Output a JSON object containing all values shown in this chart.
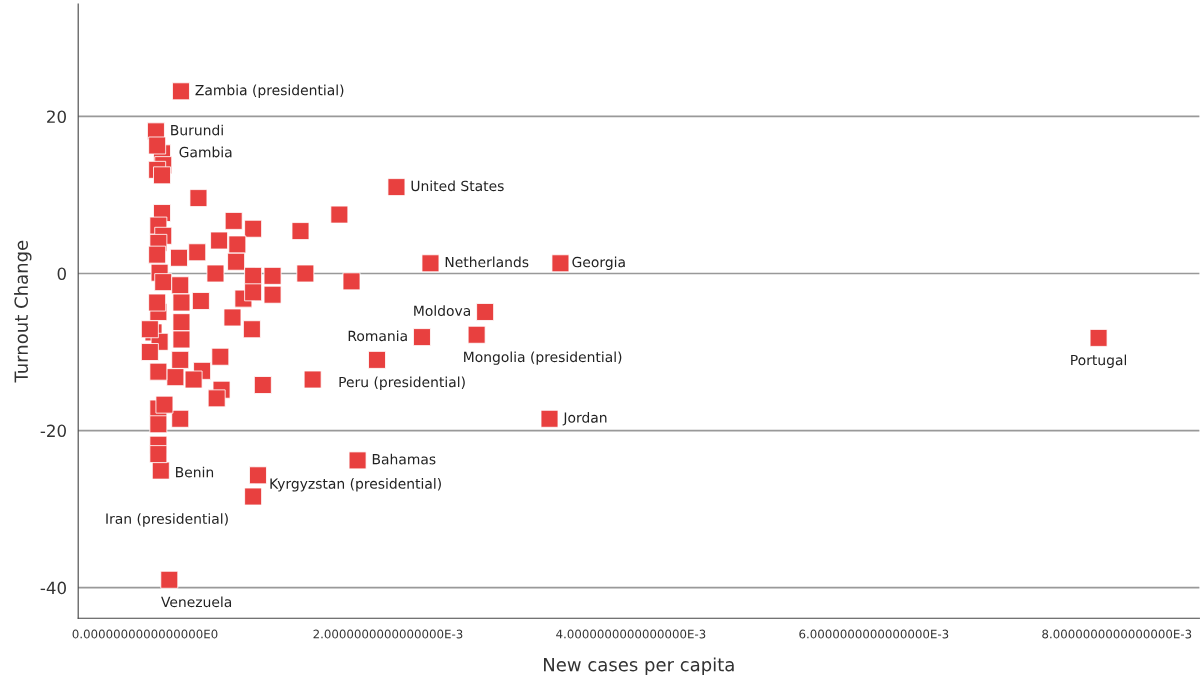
{
  "chart_data": {
    "type": "scatter",
    "xlabel": "New cases per capita",
    "ylabel": "Turnout Change",
    "xlim": [
      -0.00055,
      0.00868
    ],
    "ylim": [
      -43.9,
      34.3
    ],
    "xticks": [
      {
        "value": 0,
        "label": "0.0000000000000000E0"
      },
      {
        "value": 0.002,
        "label": "2.0000000000000000E-3"
      },
      {
        "value": 0.004,
        "label": "4.0000000000000000E-3"
      },
      {
        "value": 0.006,
        "label": "6.0000000000000000E-3"
      },
      {
        "value": 0.008,
        "label": "8.0000000000000000E-3"
      }
    ],
    "yticks": [
      -40,
      -20,
      0,
      20
    ],
    "grid": "y",
    "marker": "square",
    "series": [
      {
        "color": "#e8403f",
        "x": [
          0.000296,
          9e-05,
          0.00014,
          0.00207,
          0.00235,
          0.00342,
          0.0028,
          0.00228,
          0.00273,
          0.00191,
          0.00785,
          0.00333,
          0.00175,
          0.00093,
          0.00089,
          0.00013,
          0.0002,
          0.0001,
          0.00015,
          0.0001,
          0.00014,
          0.00044,
          0.00014,
          0.00011,
          0.00015,
          0.00011,
          0.0001,
          0.00028,
          0.00043,
          0.00073,
          0.00089,
          0.00128,
          0.00061,
          0.00076,
          0.00075,
          0.00058,
          0.00089,
          0.00105,
          0.00132,
          0.00012,
          0.00015,
          0.00029,
          0.0003,
          0.00046,
          0.00081,
          0.00089,
          0.00105,
          0.00072,
          0.00088,
          0.0003,
          0.0003,
          0.00011,
          0.0001,
          7e-05,
          0.00012,
          0.0016,
          0.0017,
          0.00097,
          0.00138,
          0.00062,
          0.00047,
          0.0004,
          0.00063,
          0.00059,
          0.00029,
          0.00025,
          0.00029,
          0.00011,
          0.00016,
          0.00011,
          0.00011,
          0.00011,
          4e-05,
          0.00011,
          4e-05
        ],
        "values": [
          23.2,
          18.1,
          15.3,
          11.0,
          1.3,
          1.3,
          -4.9,
          -8.1,
          -7.8,
          -11.0,
          -8.2,
          -18.5,
          -23.8,
          -25.7,
          -28.4,
          -25.1,
          -39.0,
          16.3,
          13.8,
          13.2,
          12.5,
          9.6,
          7.7,
          6.1,
          4.8,
          3.9,
          2.4,
          2.0,
          2.7,
          6.7,
          5.7,
          5.4,
          4.2,
          3.7,
          1.5,
          0.0,
          -0.3,
          -0.3,
          0.0,
          0.1,
          -1.1,
          -1.5,
          -3.7,
          -3.5,
          -3.2,
          -2.4,
          -2.7,
          -5.6,
          -7.1,
          -6.2,
          -8.4,
          -4.9,
          -3.7,
          -7.5,
          -8.7,
          7.5,
          -1.0,
          -14.2,
          -13.5,
          -10.6,
          -12.4,
          -13.5,
          -14.8,
          -15.9,
          -11.0,
          -13.2,
          -18.5,
          -17.2,
          -16.7,
          -19.2,
          -21.8,
          -23.0,
          -10.0,
          -12.5,
          -7.1
        ]
      }
    ],
    "annotations": [
      {
        "text": "Zambia (presidential)",
        "x": 0.000296,
        "y": 23.2
      },
      {
        "text": "Burundi",
        "x": 9e-05,
        "y": 18.1
      },
      {
        "text": "Gambia",
        "x": 0.00014,
        "y": 15.3
      },
      {
        "text": "United States",
        "x": 0.00207,
        "y": 11.0
      },
      {
        "text": "Netherlands",
        "x": 0.00235,
        "y": 1.3
      },
      {
        "text": "Georgia",
        "x": 0.00342,
        "y": 1.3
      },
      {
        "text": "Moldova",
        "x": 0.0028,
        "y": -4.9
      },
      {
        "text": "Romania",
        "x": 0.00228,
        "y": -8.1
      },
      {
        "text": "Mongolia (presidential)",
        "x": 0.00273,
        "y": -7.8
      },
      {
        "text": "Peru (presidential)",
        "x": 0.00191,
        "y": -11.0
      },
      {
        "text": "Portugal",
        "x": 0.00785,
        "y": -8.2
      },
      {
        "text": "Jordan",
        "x": 0.00333,
        "y": -18.5
      },
      {
        "text": "Bahamas",
        "x": 0.00175,
        "y": -23.8
      },
      {
        "text": "Kyrgyzstan (presidential)",
        "x": 0.00093,
        "y": -25.7
      },
      {
        "text": "Iran (presidential)",
        "x": 0.00089,
        "y": -28.4
      },
      {
        "text": "Benin",
        "x": 0.00013,
        "y": -25.1
      },
      {
        "text": "Venezuela",
        "x": 0.0002,
        "y": -39.0
      }
    ]
  }
}
